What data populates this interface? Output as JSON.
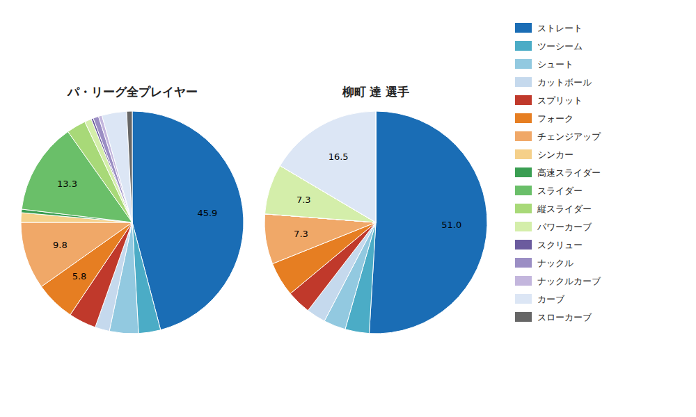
{
  "chart_data": {
    "type": "pie",
    "categories": [
      "ストレート",
      "ツーシーム",
      "シュート",
      "カットボール",
      "スプリット",
      "フォーク",
      "チェンジアップ",
      "シンカー",
      "高速スライダー",
      "スライダー",
      "縦スライダー",
      "パワーカーブ",
      "スクリュー",
      "ナックル",
      "ナックルカーブ",
      "カーブ",
      "スローカーブ"
    ],
    "colors": [
      "#1a6db5",
      "#4bacc6",
      "#92c9e0",
      "#c5d9ed",
      "#c0392b",
      "#e67e22",
      "#f0a868",
      "#f5d08a",
      "#3a9e52",
      "#6abf69",
      "#a8d978",
      "#d4eeaa",
      "#6b5b9e",
      "#9b8ec4",
      "#c3b6dd",
      "#dce6f5",
      "#666666"
    ],
    "series": [
      {
        "name": "パ・リーグ全プレイヤー",
        "values": [
          45.9,
          3.2,
          4.2,
          2.1,
          4.0,
          5.8,
          9.8,
          1.4,
          0.5,
          13.3,
          2.8,
          1.0,
          0.3,
          0.8,
          0.5,
          3.6,
          0.8
        ],
        "value_labels": [
          "45.9",
          null,
          null,
          null,
          null,
          "5.8",
          "9.8",
          null,
          null,
          "13.3",
          null,
          null,
          null,
          null,
          null,
          null,
          null
        ]
      },
      {
        "name": "柳町 達 選手",
        "values": [
          51.0,
          3.5,
          3.2,
          2.8,
          3.5,
          5.0,
          7.3,
          0.0,
          0.0,
          0.0,
          0.0,
          7.3,
          0.0,
          0.0,
          0.0,
          16.5,
          0.0
        ],
        "value_labels": [
          "51.0",
          null,
          null,
          null,
          null,
          null,
          "7.3",
          null,
          null,
          null,
          null,
          "7.3",
          null,
          null,
          null,
          "16.5",
          null
        ]
      }
    ],
    "data_labels": true,
    "legend": "right"
  }
}
